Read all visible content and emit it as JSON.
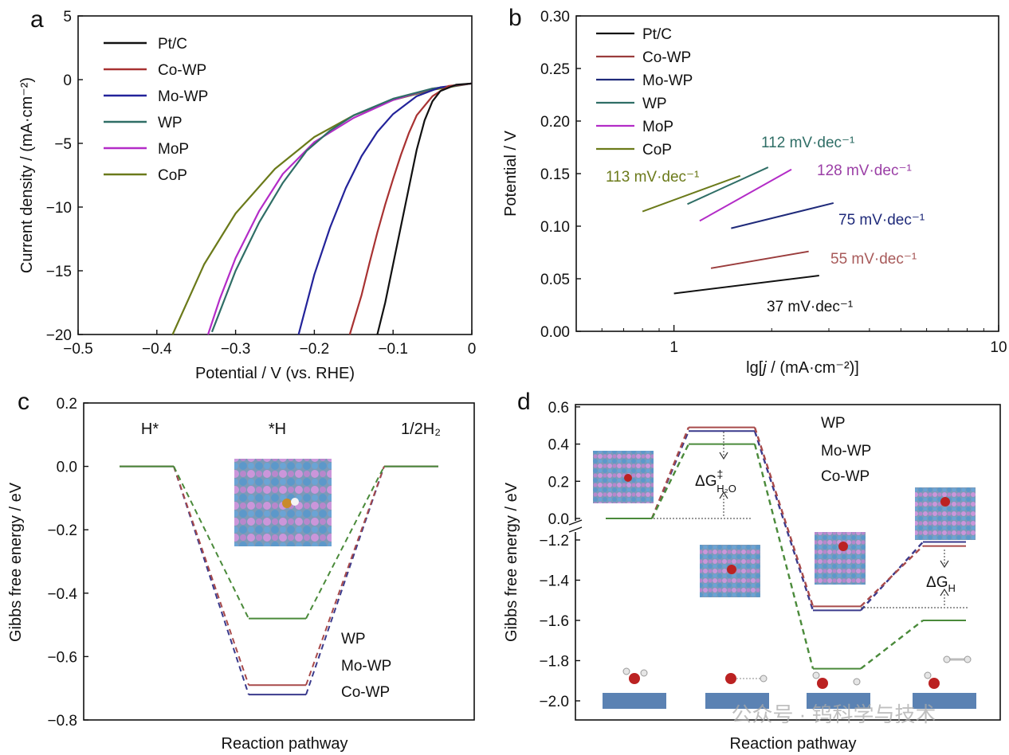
{
  "panels": {
    "a": {
      "label": "a",
      "chart_data": {
        "type": "line",
        "xlabel": "Potential / V (vs. RHE)",
        "ylabel": "Current density / (mA·cm⁻²)",
        "xlim": [
          -0.5,
          0
        ],
        "ylim": [
          -20,
          5
        ],
        "xticks": [
          -0.5,
          -0.4,
          -0.3,
          -0.2,
          -0.1,
          0
        ],
        "xtick_labels": [
          "−0.5",
          "−0.4",
          "−0.3",
          "−0.2",
          "−0.1",
          "0"
        ],
        "yticks": [
          5,
          0,
          -5,
          -10,
          -15,
          -20
        ],
        "ytick_labels": [
          "5",
          "0",
          "−5",
          "−10",
          "−15",
          "−20"
        ],
        "legend_position": "top-left",
        "series": [
          {
            "name": "Pt/C",
            "color": "#111111",
            "x": [
              0,
              -0.02,
              -0.04,
              -0.05,
              -0.06,
              -0.07,
              -0.08,
              -0.09,
              -0.1,
              -0.11,
              -0.12
            ],
            "y": [
              -0.3,
              -0.4,
              -0.9,
              -1.7,
              -3.2,
              -5.5,
              -8.5,
              -11.5,
              -14.5,
              -17.5,
              -20
            ]
          },
          {
            "name": "Co-WP",
            "color": "#a83232",
            "x": [
              0,
              -0.03,
              -0.05,
              -0.07,
              -0.08,
              -0.09,
              -0.1,
              -0.11,
              -0.12,
              -0.13,
              -0.14,
              -0.155
            ],
            "y": [
              -0.3,
              -0.5,
              -1.3,
              -2.8,
              -4.2,
              -5.9,
              -7.8,
              -9.8,
              -12.0,
              -14.4,
              -16.9,
              -20
            ]
          },
          {
            "name": "Mo-WP",
            "color": "#23239a",
            "x": [
              0,
              -0.04,
              -0.07,
              -0.1,
              -0.12,
              -0.14,
              -0.16,
              -0.18,
              -0.2,
              -0.22
            ],
            "y": [
              -0.3,
              -0.6,
              -1.3,
              -2.7,
              -4.1,
              -6.0,
              -8.5,
              -11.6,
              -15.3,
              -20
            ]
          },
          {
            "name": "WP",
            "color": "#2f6e66",
            "x": [
              0,
              -0.05,
              -0.1,
              -0.15,
              -0.18,
              -0.21,
              -0.24,
              -0.27,
              -0.3,
              -0.33
            ],
            "y": [
              -0.3,
              -0.7,
              -1.5,
              -2.8,
              -4.0,
              -5.6,
              -8.1,
              -11.2,
              -15.0,
              -19.8
            ]
          },
          {
            "name": "MoP",
            "color": "#b32cc7",
            "x": [
              0,
              -0.05,
              -0.1,
              -0.15,
              -0.2,
              -0.24,
              -0.27,
              -0.3,
              -0.32,
              -0.335
            ],
            "y": [
              -0.3,
              -0.7,
              -1.6,
              -3.0,
              -4.9,
              -7.4,
              -10.3,
              -14.0,
              -17.2,
              -20
            ]
          },
          {
            "name": "CoP",
            "color": "#6b7a1a",
            "x": [
              0,
              -0.05,
              -0.1,
              -0.15,
              -0.2,
              -0.25,
              -0.3,
              -0.34,
              -0.38
            ],
            "y": [
              -0.3,
              -0.8,
              -1.6,
              -2.8,
              -4.5,
              -7.0,
              -10.5,
              -14.5,
              -20
            ]
          }
        ]
      }
    },
    "b": {
      "label": "b",
      "chart_data": {
        "type": "line",
        "xlabel_pre": "lg[",
        "xlabel_italic": "j",
        "xlabel_post": " / (mA·cm⁻²)]",
        "ylabel": "Potential / V",
        "x_scale": "log",
        "xlim": [
          0.5,
          10
        ],
        "ylim": [
          0,
          0.3
        ],
        "xticks": [
          1,
          10
        ],
        "xtick_labels": [
          "1",
          "10"
        ],
        "yticks": [
          0,
          0.05,
          0.1,
          0.15,
          0.2,
          0.25,
          0.3
        ],
        "ytick_labels": [
          "0.00",
          "0.05",
          "0.10",
          "0.15",
          "0.20",
          "0.25",
          "0.30"
        ],
        "legend_position": "top-left",
        "series": [
          {
            "name": "Pt/C",
            "color": "#111111",
            "x": [
              1.0,
              2.8
            ],
            "y": [
              0.036,
              0.053
            ]
          },
          {
            "name": "Co-WP",
            "color": "#9a3c3c",
            "x": [
              1.3,
              2.6
            ],
            "y": [
              0.06,
              0.076
            ]
          },
          {
            "name": "Mo-WP",
            "color": "#1f2a7a",
            "x": [
              1.5,
              3.1
            ],
            "y": [
              0.098,
              0.122
            ]
          },
          {
            "name": "WP",
            "color": "#2f6e66",
            "x": [
              1.1,
              1.95
            ],
            "y": [
              0.121,
              0.156
            ]
          },
          {
            "name": "MoP",
            "color": "#b32cc7",
            "x": [
              1.2,
              2.3
            ],
            "y": [
              0.105,
              0.154
            ]
          },
          {
            "name": "CoP",
            "color": "#6b7a1a",
            "x": [
              0.8,
              1.6
            ],
            "y": [
              0.114,
              0.148
            ]
          }
        ],
        "annotations": [
          {
            "text": "37 mV·dec⁻¹",
            "color": "#111111"
          },
          {
            "text": "55 mV·dec⁻¹",
            "color": "#a85a5a"
          },
          {
            "text": "75 mV·dec⁻¹",
            "color": "#1f2a7a"
          },
          {
            "text": "112 mV·dec⁻¹",
            "color": "#2f6e66"
          },
          {
            "text": "128 mV·dec⁻¹",
            "color": "#9b3fa6"
          },
          {
            "text": "113 mV·dec⁻¹",
            "color": "#6b7a1a"
          }
        ]
      }
    },
    "c": {
      "label": "c",
      "chart_data": {
        "type": "line",
        "xlabel": "Reaction pathway",
        "ylabel": "Gibbs free energy / eV",
        "ylim": [
          -0.8,
          0.2
        ],
        "yticks": [
          0.2,
          0.0,
          -0.2,
          -0.4,
          -0.6,
          -0.8
        ],
        "ytick_labels": [
          "0.2",
          "0.0",
          "−0.2",
          "−0.4",
          "−0.6",
          "−0.8"
        ],
        "states": [
          "H*",
          "*H",
          "1/2H₂"
        ],
        "legend_position": "bottom-right",
        "series": [
          {
            "name": "WP",
            "color": "#3a3a8c",
            "y": [
              0.0,
              -0.72,
              0.0
            ]
          },
          {
            "name": "Mo-WP",
            "color": "#a84a4a",
            "y": [
              0.0,
              -0.69,
              0.0
            ]
          },
          {
            "name": "Co-WP",
            "color": "#4a8a3a",
            "y": [
              0.0,
              -0.48,
              0.0
            ]
          }
        ]
      }
    },
    "d": {
      "label": "d",
      "chart_data": {
        "type": "line",
        "xlabel": "Reaction pathway",
        "ylabel": "Gibbs free energy / eV",
        "y_axis_break": [
          0.0,
          -1.2
        ],
        "yticks_upper": [
          0.6,
          0.4,
          0.2,
          0.0
        ],
        "ytick_labels_upper": [
          "0.6",
          "0.4",
          "0.2",
          "0.0"
        ],
        "yticks_lower": [
          -1.2,
          -1.4,
          -1.6,
          -1.8,
          -2.0
        ],
        "ytick_labels_lower": [
          "−1.2",
          "−1.4",
          "−1.6",
          "−1.8",
          "−2.0"
        ],
        "legend_position": "top-center",
        "series": [
          {
            "name": "WP",
            "color": "#3a3a8c",
            "y": [
              0.0,
              0.47,
              -1.55,
              -1.21
            ]
          },
          {
            "name": "Mo-WP",
            "color": "#a84a4a",
            "y": [
              0.0,
              0.49,
              -1.53,
              -1.23
            ]
          },
          {
            "name": "Co-WP",
            "color": "#4a8a3a",
            "y": [
              0.0,
              0.4,
              -1.84,
              -1.6
            ]
          }
        ],
        "annotations": {
          "barrier": {
            "main": "ΔG",
            "sup": "‡",
            "sub": "H₂O"
          },
          "adsorption": {
            "main": "ΔG",
            "sub": "H"
          }
        }
      }
    }
  },
  "watermark": "公众号 · 钨科学与技术"
}
